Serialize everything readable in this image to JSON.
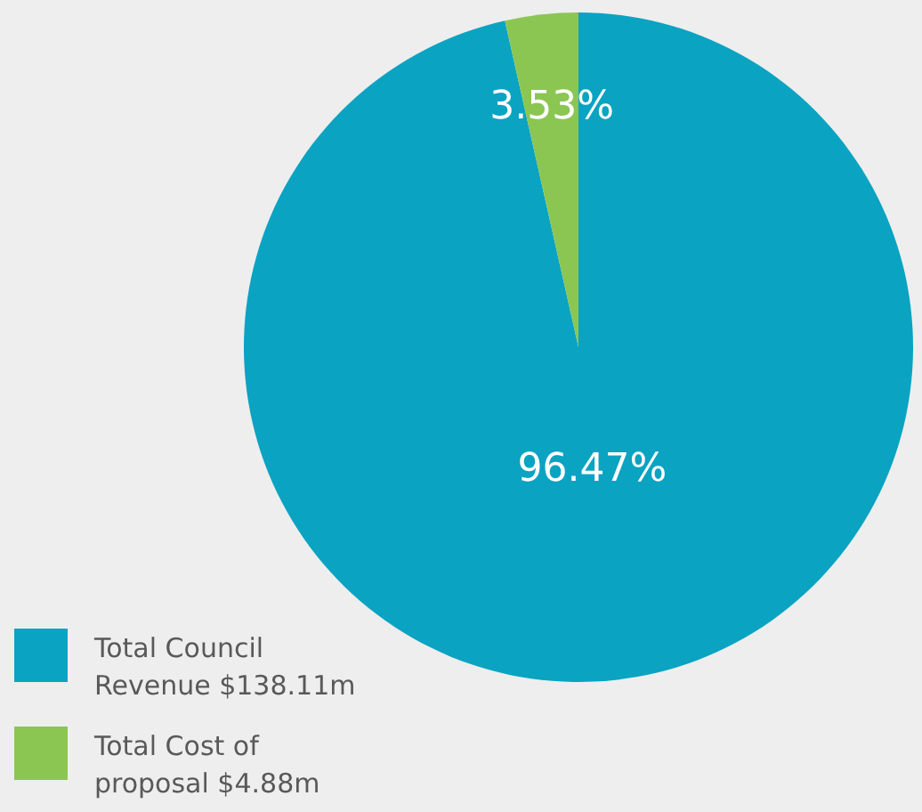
{
  "chart_data": {
    "type": "pie",
    "categories": [
      "Total Council Revenue $138.11m",
      "Total Cost of proposal $4.88m"
    ],
    "values": [
      96.47,
      3.53
    ],
    "colors": [
      "#0aa3c2",
      "#8bc653"
    ],
    "value_labels": [
      "96.47%",
      "3.53%"
    ],
    "legend": "bottom left"
  }
}
